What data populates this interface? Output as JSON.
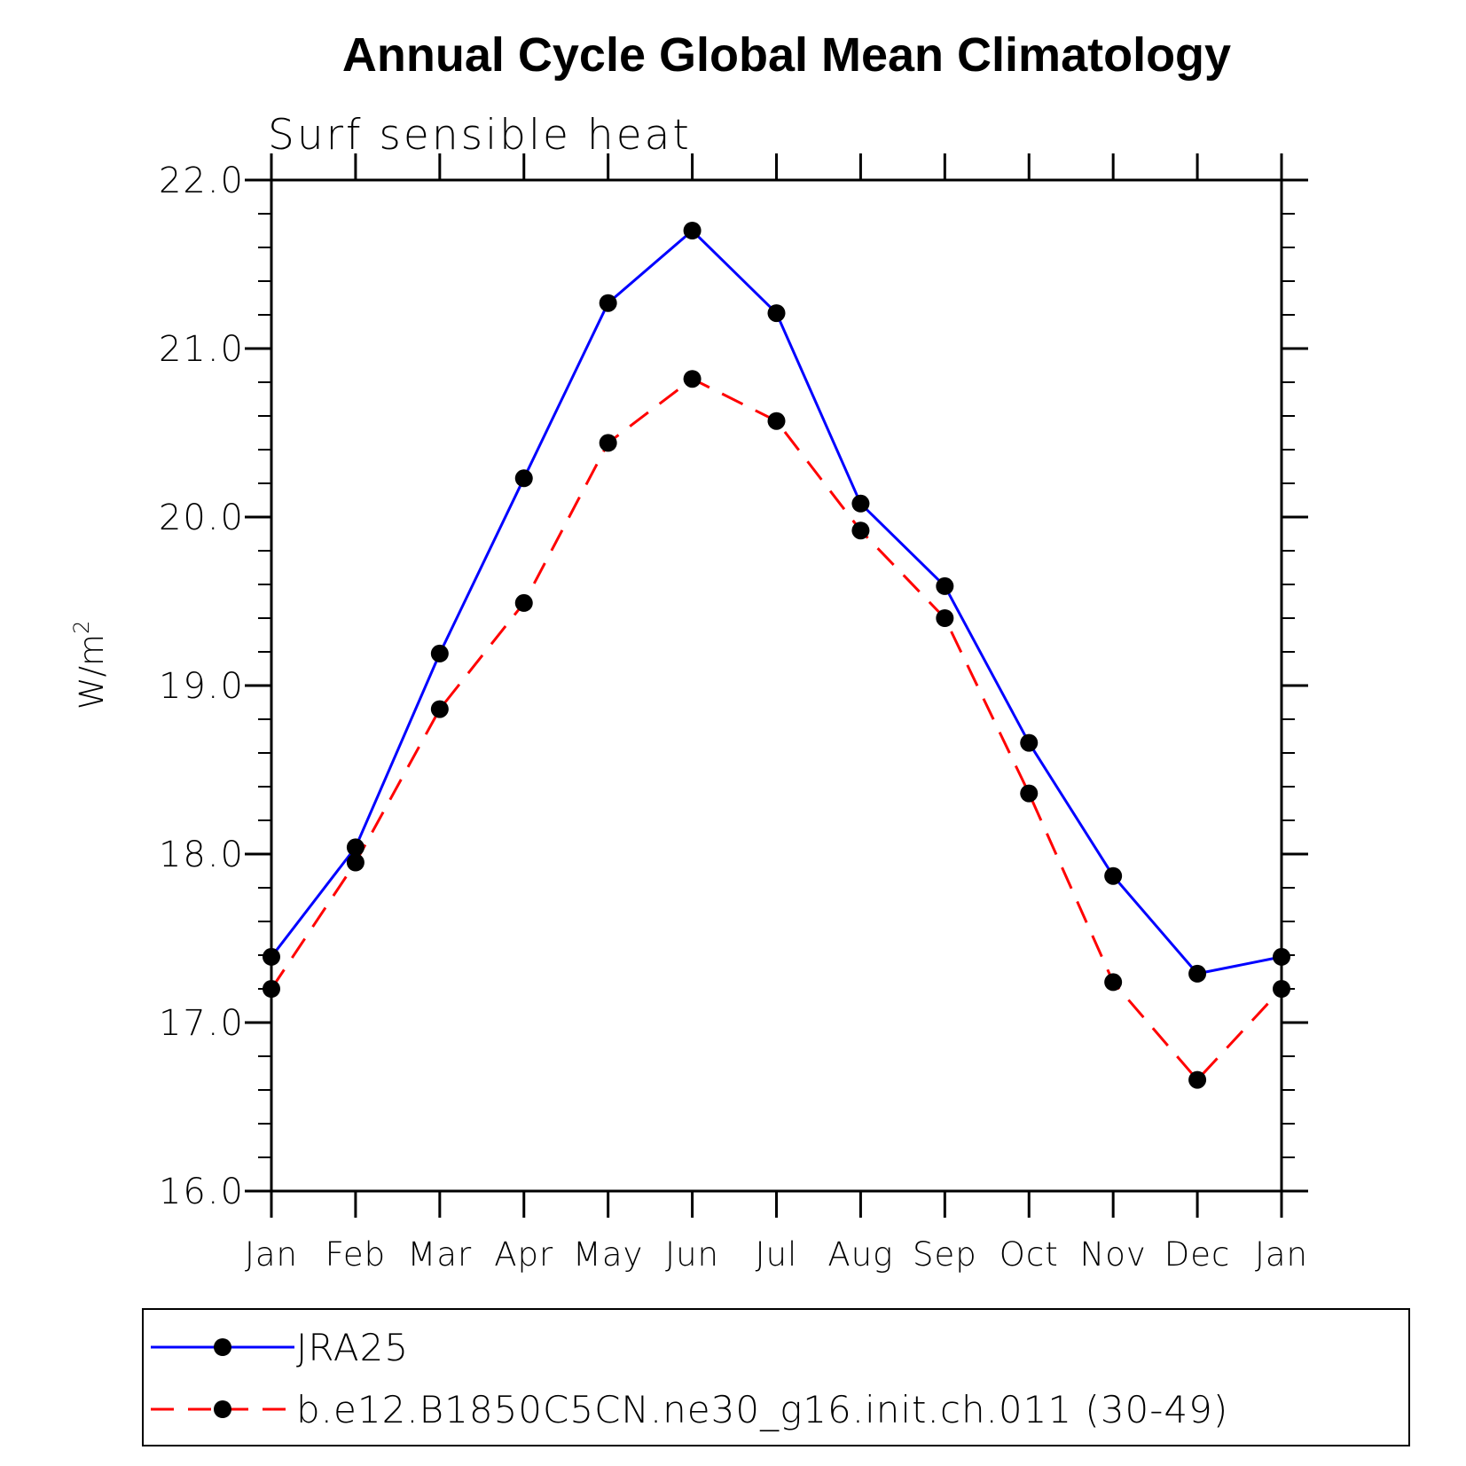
{
  "chart_data": {
    "type": "line",
    "title": "Annual Cycle Global Mean Climatology",
    "subtitle": "Surf sensible heat",
    "ylabel": "W/m",
    "ylabel_sup": "2",
    "xlabel": "",
    "categories": [
      "Jan",
      "Feb",
      "Mar",
      "Apr",
      "May",
      "Jun",
      "Jul",
      "Aug",
      "Sep",
      "Oct",
      "Nov",
      "Dec",
      "Jan"
    ],
    "ylim": [
      16.0,
      22.0
    ],
    "yticks": [
      "16.0",
      "17.0",
      "18.0",
      "19.0",
      "20.0",
      "21.0",
      "22.0"
    ],
    "grid": false,
    "legend_position": "bottom",
    "series": [
      {
        "name": "JRA25",
        "color": "#0000ff",
        "dash": "solid",
        "values": [
          17.39,
          18.04,
          19.19,
          20.23,
          21.27,
          21.7,
          21.21,
          20.08,
          19.59,
          18.66,
          17.87,
          17.29,
          17.39
        ]
      },
      {
        "name": "b.e12.B1850C5CN.ne30_g16.init.ch.011 (30-49)",
        "color": "#ff0000",
        "dash": "dashed",
        "values": [
          17.2,
          17.95,
          18.86,
          19.49,
          20.44,
          20.82,
          20.57,
          19.92,
          19.4,
          18.36,
          17.24,
          16.66,
          17.2
        ]
      }
    ]
  }
}
